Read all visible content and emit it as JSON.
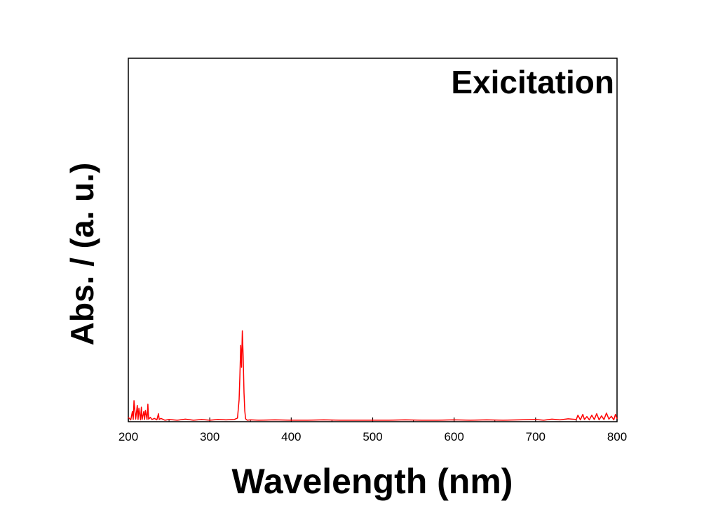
{
  "chart_data": {
    "type": "line",
    "title": "Exicitation",
    "xlabel": "Wavelength (nm)",
    "ylabel": "Abs. / (a. u.)",
    "xlim": [
      200,
      800
    ],
    "ylim": [
      0,
      1
    ],
    "x_ticks": [
      200,
      300,
      400,
      500,
      600,
      700,
      800
    ],
    "x_tick_labels": [
      "200",
      "300",
      "400",
      "500",
      "600",
      "700",
      "800"
    ],
    "y_tick_labels": [],
    "grid": false,
    "line_color": "#ff0000",
    "series": [
      {
        "x": [
          200,
          203,
          205,
          206,
          207,
          209,
          211,
          212,
          213,
          215,
          216,
          217,
          219,
          220,
          221,
          223,
          224,
          225,
          227,
          229,
          232,
          235,
          237,
          238,
          240,
          245,
          250,
          260,
          270,
          280,
          290,
          300,
          310,
          320,
          330,
          334,
          336,
          337,
          338,
          339,
          340,
          341,
          342,
          343,
          344,
          346,
          350,
          360,
          380,
          400,
          420,
          440,
          460,
          480,
          500,
          520,
          540,
          560,
          580,
          600,
          620,
          640,
          660,
          680,
          700,
          710,
          720,
          730,
          740,
          750,
          752,
          755,
          758,
          760,
          763,
          766,
          769,
          772,
          775,
          778,
          781,
          784,
          787,
          790,
          793,
          796,
          798,
          800
        ],
        "y": [
          0.012,
          0.005,
          0.028,
          0.006,
          0.058,
          0.007,
          0.045,
          0.006,
          0.037,
          0.005,
          0.04,
          0.006,
          0.028,
          0.006,
          0.031,
          0.006,
          0.048,
          0.007,
          0.012,
          0.006,
          0.009,
          0.005,
          0.022,
          0.006,
          0.009,
          0.004,
          0.006,
          0.004,
          0.007,
          0.004,
          0.006,
          0.004,
          0.006,
          0.005,
          0.006,
          0.01,
          0.06,
          0.125,
          0.21,
          0.15,
          0.25,
          0.18,
          0.08,
          0.03,
          0.008,
          0.004,
          0.005,
          0.004,
          0.005,
          0.004,
          0.004,
          0.005,
          0.004,
          0.004,
          0.004,
          0.004,
          0.005,
          0.004,
          0.004,
          0.005,
          0.004,
          0.005,
          0.004,
          0.005,
          0.006,
          0.004,
          0.007,
          0.005,
          0.008,
          0.006,
          0.018,
          0.005,
          0.02,
          0.006,
          0.014,
          0.005,
          0.018,
          0.006,
          0.022,
          0.005,
          0.016,
          0.006,
          0.024,
          0.007,
          0.015,
          0.005,
          0.02,
          0.008
        ]
      }
    ]
  }
}
